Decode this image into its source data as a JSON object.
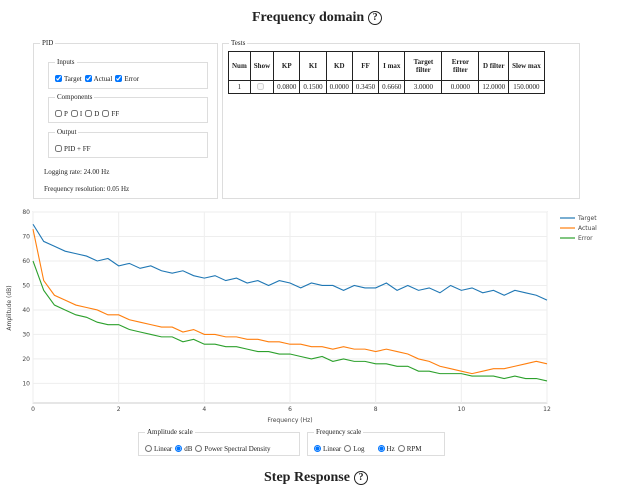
{
  "header": {
    "title": "Frequency domain",
    "help": "?"
  },
  "pid": {
    "legend": "PID",
    "inputs": {
      "legend": "Inputs",
      "items": [
        {
          "label": "Target",
          "checked": true
        },
        {
          "label": "Actual",
          "checked": true
        },
        {
          "label": "Error",
          "checked": true
        }
      ]
    },
    "components": {
      "legend": "Components",
      "items": [
        {
          "label": "P",
          "checked": false
        },
        {
          "label": "I",
          "checked": false
        },
        {
          "label": "D",
          "checked": false
        },
        {
          "label": "FF",
          "checked": false
        }
      ]
    },
    "output": {
      "legend": "Output",
      "items": [
        {
          "label": "PID + FF",
          "checked": false
        }
      ]
    },
    "logging_rate": "Logging rate: 24.00 Hz",
    "frequency_resolution": "Frequency resolution: 0.05 Hz"
  },
  "tests": {
    "legend": "Tests",
    "columns": [
      "Num",
      "Show",
      "KP",
      "KI",
      "KD",
      "FF",
      "I max",
      "Target filter",
      "Error filter",
      "D filter",
      "Slew max"
    ],
    "rows": [
      [
        "1",
        false,
        "0.0800",
        "0.1500",
        "0.0000",
        "0.3450",
        "0.6660",
        "3.0000",
        "0.0000",
        "12.0000",
        "150.0000"
      ]
    ]
  },
  "chart_data": {
    "type": "line",
    "x_label": "Frequency (Hz)",
    "y_label": "Amplitude (dB)",
    "x": [
      0,
      0.25,
      0.5,
      0.75,
      1,
      1.25,
      1.5,
      1.75,
      2,
      2.25,
      2.5,
      2.75,
      3,
      3.25,
      3.5,
      3.75,
      4,
      4.25,
      4.5,
      4.75,
      5,
      5.25,
      5.5,
      5.75,
      6,
      6.25,
      6.5,
      6.75,
      7,
      7.25,
      7.5,
      7.75,
      8,
      8.25,
      8.5,
      8.75,
      9,
      9.25,
      9.5,
      9.75,
      10,
      10.25,
      10.5,
      10.75,
      11,
      11.25,
      11.5,
      11.75,
      12
    ],
    "series": [
      {
        "name": "Target",
        "color": "#1f77b4",
        "values": [
          75,
          68,
          66,
          64,
          63,
          62,
          60,
          61,
          58,
          59,
          57,
          58,
          56,
          55,
          56,
          54,
          53,
          54,
          52,
          53,
          51,
          52,
          50,
          52,
          51,
          49,
          51,
          50,
          50,
          48,
          50,
          49,
          49,
          51,
          48,
          50,
          48,
          49,
          47,
          50,
          48,
          49,
          47,
          48,
          46,
          48,
          47,
          46,
          44
        ]
      },
      {
        "name": "Actual",
        "color": "#ff7f0e",
        "values": [
          73,
          52,
          46,
          44,
          42,
          41,
          40,
          38,
          38,
          36,
          35,
          34,
          33,
          33,
          31,
          32,
          30,
          30,
          29,
          29,
          28,
          28,
          27,
          27,
          26,
          26,
          25,
          25,
          24,
          25,
          24,
          24,
          23,
          24,
          23,
          22,
          20,
          19,
          17,
          16,
          15,
          14,
          15,
          16,
          16,
          17,
          18,
          19,
          18
        ]
      },
      {
        "name": "Error",
        "color": "#2ca02c",
        "values": [
          60,
          48,
          42,
          40,
          38,
          37,
          35,
          34,
          34,
          32,
          31,
          30,
          29,
          29,
          27,
          28,
          26,
          26,
          25,
          25,
          24,
          23,
          23,
          22,
          22,
          21,
          20,
          21,
          19,
          20,
          19,
          19,
          18,
          18,
          17,
          17,
          15,
          15,
          14,
          14,
          14,
          13,
          13,
          13,
          12,
          13,
          12,
          12,
          11
        ]
      }
    ],
    "xlim": [
      0,
      12
    ],
    "xticks": [
      0,
      2,
      4,
      6,
      8,
      10,
      12
    ],
    "ylim": [
      2,
      80
    ],
    "yticks": [
      10,
      20,
      30,
      40,
      50,
      60,
      70,
      80
    ],
    "grid": true,
    "legend": "right"
  },
  "controls": {
    "amplitude": {
      "legend": "Amplitude scale",
      "options": [
        {
          "label": "Linear",
          "selected": false
        },
        {
          "label": "dB",
          "selected": true
        },
        {
          "label": "Power Spectral Density",
          "selected": false
        }
      ]
    },
    "frequency": {
      "legend": "Frequency scale",
      "options": [
        {
          "label": "Linear",
          "selected": true
        },
        {
          "label": "Log",
          "selected": false
        }
      ],
      "units": [
        {
          "label": "Hz",
          "selected": true
        },
        {
          "label": "RPM",
          "selected": false
        }
      ]
    }
  },
  "footer": {
    "title": "Step Response",
    "help": "?"
  }
}
